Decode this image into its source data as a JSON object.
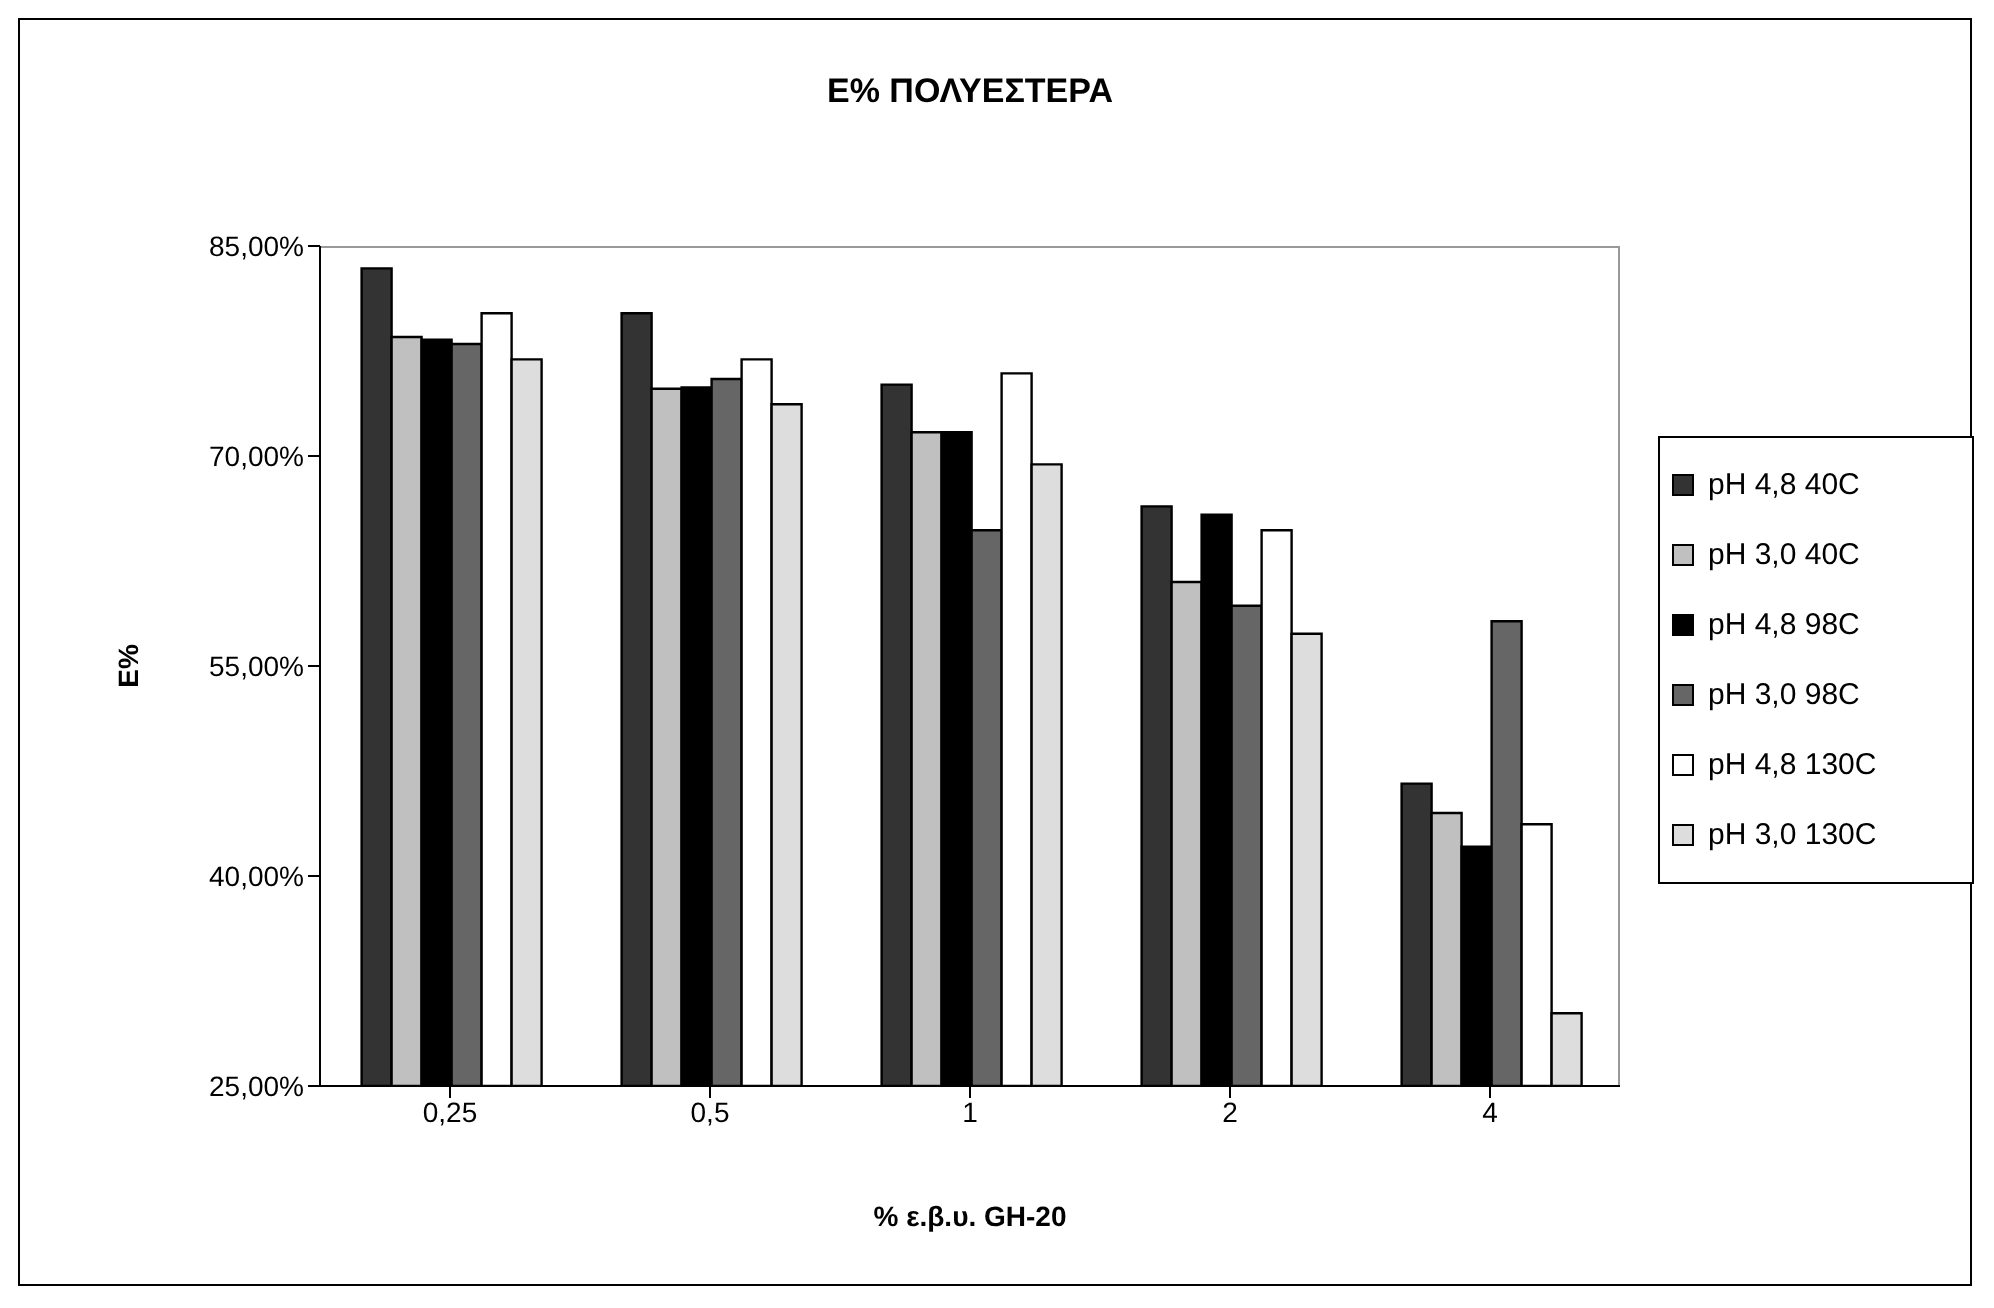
{
  "chart_data": {
    "type": "bar",
    "title": "E% ΠΟΛΥΕΣΤΕΡΑ",
    "xlabel": "% ε.β.υ. GH-20",
    "ylabel": "E%",
    "categories": [
      "0,25",
      "0,5",
      "1",
      "2",
      "4"
    ],
    "series": [
      {
        "name": "pH 4,8 40C",
        "color": "#333333",
        "values": [
          83.4,
          80.2,
          75.1,
          66.4,
          46.6
        ]
      },
      {
        "name": "pH 3,0 40C",
        "color": "#c0c0c0",
        "values": [
          78.5,
          74.8,
          71.7,
          61.0,
          44.5
        ]
      },
      {
        "name": "pH 4,8 98C",
        "color": "#000000",
        "values": [
          78.3,
          74.9,
          71.7,
          65.8,
          42.1
        ]
      },
      {
        "name": "pH 3,0 98C",
        "color": "#666666",
        "values": [
          78.0,
          75.5,
          64.7,
          59.3,
          58.2
        ]
      },
      {
        "name": "pH 4,8 130C",
        "color": "#ffffff",
        "values": [
          80.2,
          76.9,
          75.9,
          64.7,
          43.7
        ]
      },
      {
        "name": "pH 3,0 130C",
        "color": "#dddddd",
        "values": [
          76.9,
          73.7,
          69.4,
          57.3,
          30.2
        ]
      }
    ],
    "ylim": [
      25,
      85
    ],
    "yticks": [
      {
        "value": 25,
        "label": "25,00%"
      },
      {
        "value": 40,
        "label": "40,00%"
      },
      {
        "value": 55,
        "label": "55,00%"
      },
      {
        "value": 70,
        "label": "70,00%"
      },
      {
        "value": 85,
        "label": "85,00%"
      }
    ],
    "legend": "right",
    "grid": false
  }
}
